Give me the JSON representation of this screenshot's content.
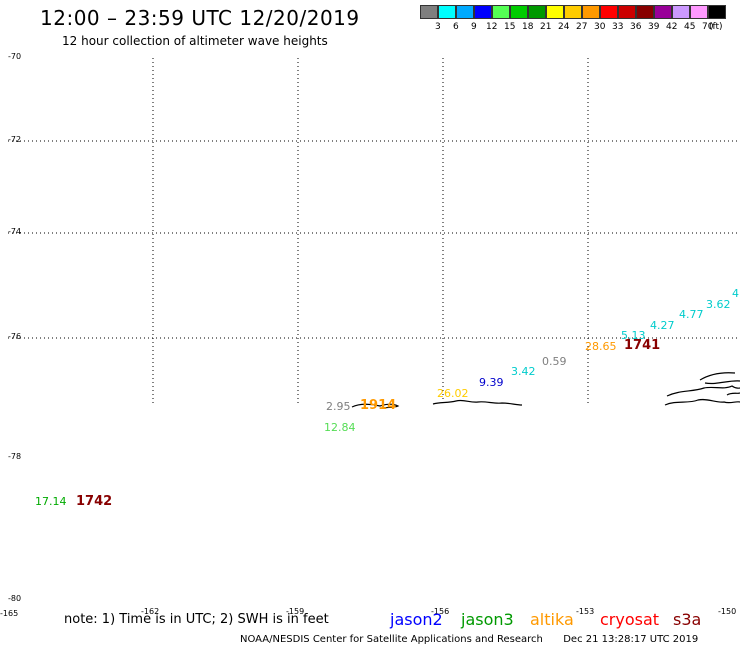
{
  "header": {
    "title": "12:00 – 23:59 UTC 12/20/2019",
    "subtitle": "12 hour collection of altimeter wave heights"
  },
  "legend": {
    "colors": [
      "#7f7f7f",
      "#00ffff",
      "#00aaff",
      "#0000ff",
      "#55ff55",
      "#00cc00",
      "#009900",
      "#ffff00",
      "#ffcc00",
      "#ff9900",
      "#ff0000",
      "#cc0000",
      "#880000",
      "#990099",
      "#cc99ff",
      "#ff99ff",
      "#000000"
    ],
    "ticks": [
      "3",
      "6",
      "9",
      "12",
      "15",
      "18",
      "21",
      "24",
      "27",
      "30",
      "33",
      "36",
      "39",
      "42",
      "45",
      "70"
    ],
    "unit": "(ft)"
  },
  "axes": {
    "lat_labels": [
      "-70",
      "-72",
      "-74",
      "-76",
      "-78",
      "-80"
    ],
    "lon_labels": [
      "-165",
      "-162",
      "-159",
      "-156",
      "-153",
      "-150"
    ]
  },
  "observations": [
    {
      "value": "17.14",
      "color": "#00aa00"
    },
    {
      "value": "12.84",
      "color": "#55dd55"
    },
    {
      "value": "2.95",
      "color": "#7f7f7f"
    },
    {
      "value": "26.02",
      "color": "#ffcc00"
    },
    {
      "value": "9.39",
      "color": "#0000cc"
    },
    {
      "value": "3.42",
      "color": "#00cccc"
    },
    {
      "value": "0.59",
      "color": "#7f7f7f"
    },
    {
      "value": "28.65",
      "color": "#ff9900"
    },
    {
      "value": "5.13",
      "color": "#00cccc"
    },
    {
      "value": "4.27",
      "color": "#00cccc"
    },
    {
      "value": "4.77",
      "color": "#00cccc"
    },
    {
      "value": "3.62",
      "color": "#00cccc"
    },
    {
      "value": "4",
      "color": "#00cccc"
    }
  ],
  "pass_times": [
    {
      "value": "1742",
      "color": "#880000"
    },
    {
      "value": "1914",
      "color": "#ff9900"
    },
    {
      "value": "1741",
      "color": "#880000"
    }
  ],
  "note": "note: 1) Time is in UTC; 2) SWH is in feet",
  "satellites": [
    {
      "name": "jason2",
      "color": "#0000ff"
    },
    {
      "name": "jason3",
      "color": "#009900"
    },
    {
      "name": "altika",
      "color": "#ff9900"
    },
    {
      "name": "cryosat",
      "color": "#ff0000"
    },
    {
      "name": "s3a",
      "color": "#880000"
    }
  ],
  "footer": {
    "agency": "NOAA/NESDIS Center for Satellite Applications and Research",
    "timestamp": "Dec 21 13:28:17 UTC 2019"
  }
}
